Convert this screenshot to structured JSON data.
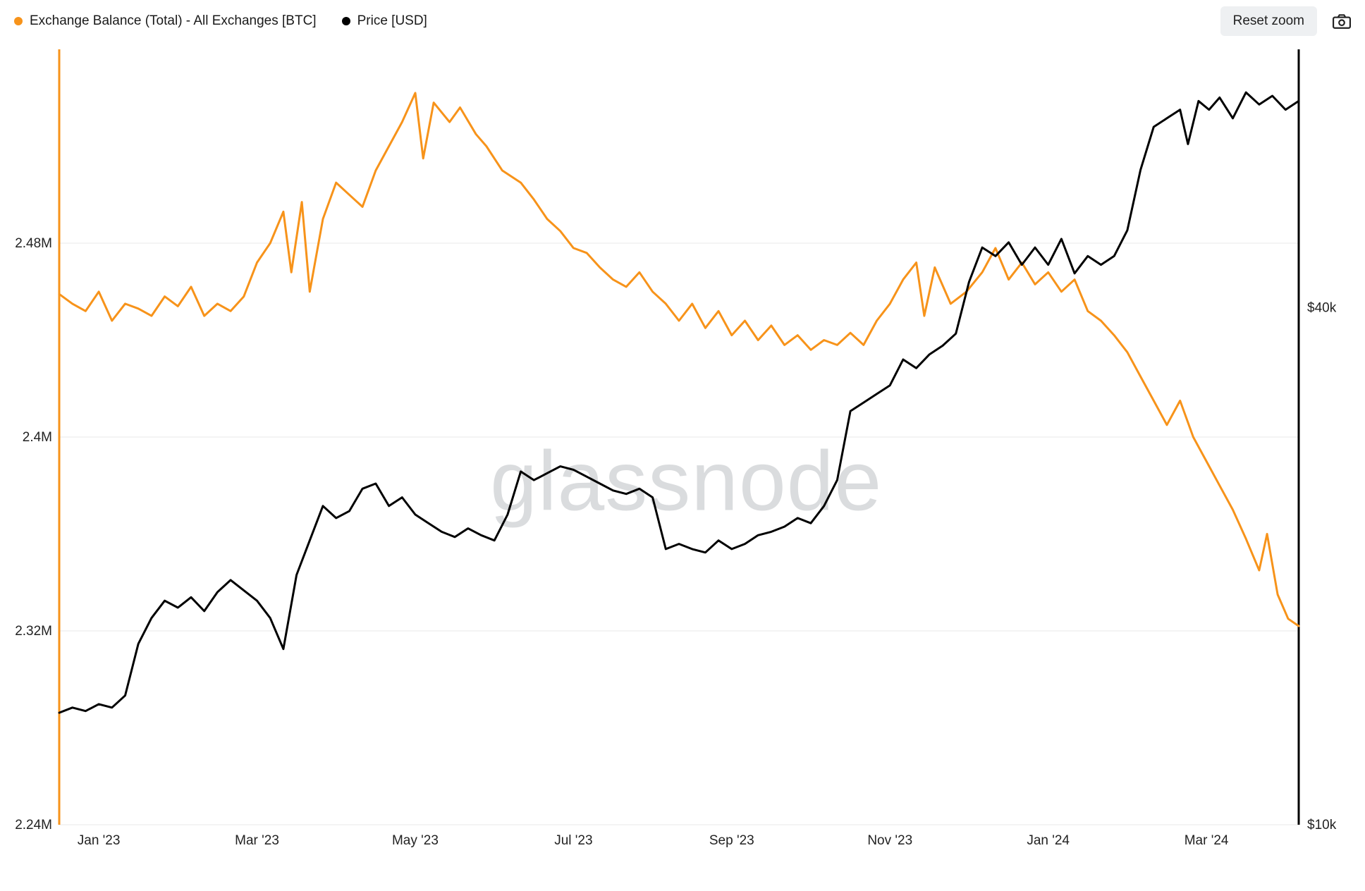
{
  "legend": {
    "series1": {
      "label": "Exchange Balance (Total) - All Exchanges [BTC]",
      "color": "#f7931a"
    },
    "series2": {
      "label": "Price [USD]",
      "color": "#000000"
    }
  },
  "controls": {
    "reset": "Reset zoom"
  },
  "watermark": "glassnode",
  "chart": {
    "type": "line-dual-axis",
    "background_color": "#ffffff",
    "grid_color": "#e8e8e8",
    "axis_font_size": 19,
    "line_width": 3,
    "x": {
      "min": 0,
      "max": 470,
      "ticks": [
        {
          "v": 15,
          "label": "Jan '23"
        },
        {
          "v": 75,
          "label": "Mar '23"
        },
        {
          "v": 135,
          "label": "May '23"
        },
        {
          "v": 195,
          "label": "Jul '23"
        },
        {
          "v": 255,
          "label": "Sep '23"
        },
        {
          "v": 315,
          "label": "Nov '23"
        },
        {
          "v": 375,
          "label": "Jan '24"
        },
        {
          "v": 435,
          "label": "Mar '24"
        }
      ]
    },
    "yLeft": {
      "min": 2.24,
      "max": 2.56,
      "ticks": [
        {
          "v": 2.24,
          "label": "2.24M"
        },
        {
          "v": 2.32,
          "label": "2.32M"
        },
        {
          "v": 2.4,
          "label": "2.4M"
        },
        {
          "v": 2.48,
          "label": "2.48M"
        }
      ],
      "color": "#f7931a"
    },
    "yRight": {
      "min": 10,
      "max": 55,
      "ticks": [
        {
          "v": 10,
          "label": "$10k"
        },
        {
          "v": 40,
          "label": "$40k"
        }
      ],
      "color": "#000000"
    },
    "series_balance": {
      "color": "#f7931a",
      "points": [
        [
          0,
          2.459
        ],
        [
          5,
          2.455
        ],
        [
          10,
          2.452
        ],
        [
          15,
          2.46
        ],
        [
          20,
          2.448
        ],
        [
          25,
          2.455
        ],
        [
          30,
          2.453
        ],
        [
          35,
          2.45
        ],
        [
          40,
          2.458
        ],
        [
          45,
          2.454
        ],
        [
          50,
          2.462
        ],
        [
          55,
          2.45
        ],
        [
          60,
          2.455
        ],
        [
          65,
          2.452
        ],
        [
          70,
          2.458
        ],
        [
          75,
          2.472
        ],
        [
          80,
          2.48
        ],
        [
          85,
          2.493
        ],
        [
          88,
          2.468
        ],
        [
          92,
          2.497
        ],
        [
          95,
          2.46
        ],
        [
          100,
          2.49
        ],
        [
          105,
          2.505
        ],
        [
          110,
          2.5
        ],
        [
          115,
          2.495
        ],
        [
          120,
          2.51
        ],
        [
          125,
          2.52
        ],
        [
          130,
          2.53
        ],
        [
          135,
          2.542
        ],
        [
          138,
          2.515
        ],
        [
          142,
          2.538
        ],
        [
          148,
          2.53
        ],
        [
          152,
          2.536
        ],
        [
          158,
          2.525
        ],
        [
          162,
          2.52
        ],
        [
          168,
          2.51
        ],
        [
          175,
          2.505
        ],
        [
          180,
          2.498
        ],
        [
          185,
          2.49
        ],
        [
          190,
          2.485
        ],
        [
          195,
          2.478
        ],
        [
          200,
          2.476
        ],
        [
          205,
          2.47
        ],
        [
          210,
          2.465
        ],
        [
          215,
          2.462
        ],
        [
          220,
          2.468
        ],
        [
          225,
          2.46
        ],
        [
          230,
          2.455
        ],
        [
          235,
          2.448
        ],
        [
          240,
          2.455
        ],
        [
          245,
          2.445
        ],
        [
          250,
          2.452
        ],
        [
          255,
          2.442
        ],
        [
          260,
          2.448
        ],
        [
          265,
          2.44
        ],
        [
          270,
          2.446
        ],
        [
          275,
          2.438
        ],
        [
          280,
          2.442
        ],
        [
          285,
          2.436
        ],
        [
          290,
          2.44
        ],
        [
          295,
          2.438
        ],
        [
          300,
          2.443
        ],
        [
          305,
          2.438
        ],
        [
          310,
          2.448
        ],
        [
          315,
          2.455
        ],
        [
          320,
          2.465
        ],
        [
          325,
          2.472
        ],
        [
          328,
          2.45
        ],
        [
          332,
          2.47
        ],
        [
          338,
          2.455
        ],
        [
          344,
          2.46
        ],
        [
          350,
          2.468
        ],
        [
          355,
          2.478
        ],
        [
          360,
          2.465
        ],
        [
          365,
          2.472
        ],
        [
          370,
          2.463
        ],
        [
          375,
          2.468
        ],
        [
          380,
          2.46
        ],
        [
          385,
          2.465
        ],
        [
          390,
          2.452
        ],
        [
          395,
          2.448
        ],
        [
          400,
          2.442
        ],
        [
          405,
          2.435
        ],
        [
          410,
          2.425
        ],
        [
          415,
          2.415
        ],
        [
          420,
          2.405
        ],
        [
          425,
          2.415
        ],
        [
          430,
          2.4
        ],
        [
          435,
          2.39
        ],
        [
          440,
          2.38
        ],
        [
          445,
          2.37
        ],
        [
          450,
          2.358
        ],
        [
          455,
          2.345
        ],
        [
          458,
          2.36
        ],
        [
          462,
          2.335
        ],
        [
          466,
          2.325
        ],
        [
          470,
          2.322
        ]
      ]
    },
    "series_price": {
      "color": "#000000",
      "points": [
        [
          0,
          16.5
        ],
        [
          5,
          16.8
        ],
        [
          10,
          16.6
        ],
        [
          15,
          17.0
        ],
        [
          20,
          16.8
        ],
        [
          25,
          17.5
        ],
        [
          30,
          20.5
        ],
        [
          35,
          22.0
        ],
        [
          40,
          23.0
        ],
        [
          45,
          22.6
        ],
        [
          50,
          23.2
        ],
        [
          55,
          22.4
        ],
        [
          60,
          23.5
        ],
        [
          65,
          24.2
        ],
        [
          70,
          23.6
        ],
        [
          75,
          23.0
        ],
        [
          80,
          22.0
        ],
        [
          85,
          20.2
        ],
        [
          90,
          24.5
        ],
        [
          95,
          26.5
        ],
        [
          100,
          28.5
        ],
        [
          105,
          27.8
        ],
        [
          110,
          28.2
        ],
        [
          115,
          29.5
        ],
        [
          120,
          29.8
        ],
        [
          125,
          28.5
        ],
        [
          130,
          29.0
        ],
        [
          135,
          28.0
        ],
        [
          140,
          27.5
        ],
        [
          145,
          27.0
        ],
        [
          150,
          26.7
        ],
        [
          155,
          27.2
        ],
        [
          160,
          26.8
        ],
        [
          165,
          26.5
        ],
        [
          170,
          28.0
        ],
        [
          175,
          30.5
        ],
        [
          180,
          30.0
        ],
        [
          185,
          30.4
        ],
        [
          190,
          30.8
        ],
        [
          195,
          30.6
        ],
        [
          200,
          30.2
        ],
        [
          205,
          29.8
        ],
        [
          210,
          29.4
        ],
        [
          215,
          29.2
        ],
        [
          220,
          29.5
        ],
        [
          225,
          29.0
        ],
        [
          230,
          26.0
        ],
        [
          235,
          26.3
        ],
        [
          240,
          26.0
        ],
        [
          245,
          25.8
        ],
        [
          250,
          26.5
        ],
        [
          255,
          26.0
        ],
        [
          260,
          26.3
        ],
        [
          265,
          26.8
        ],
        [
          270,
          27.0
        ],
        [
          275,
          27.3
        ],
        [
          280,
          27.8
        ],
        [
          285,
          27.5
        ],
        [
          290,
          28.5
        ],
        [
          295,
          30.0
        ],
        [
          300,
          34.0
        ],
        [
          305,
          34.5
        ],
        [
          310,
          35.0
        ],
        [
          315,
          35.5
        ],
        [
          320,
          37.0
        ],
        [
          325,
          36.5
        ],
        [
          330,
          37.3
        ],
        [
          335,
          37.8
        ],
        [
          340,
          38.5
        ],
        [
          345,
          41.5
        ],
        [
          350,
          43.5
        ],
        [
          355,
          43.0
        ],
        [
          360,
          43.8
        ],
        [
          365,
          42.5
        ],
        [
          370,
          43.5
        ],
        [
          375,
          42.5
        ],
        [
          380,
          44.0
        ],
        [
          385,
          42.0
        ],
        [
          390,
          43.0
        ],
        [
          395,
          42.5
        ],
        [
          400,
          43.0
        ],
        [
          405,
          44.5
        ],
        [
          410,
          48.0
        ],
        [
          415,
          50.5
        ],
        [
          420,
          51.0
        ],
        [
          425,
          51.5
        ],
        [
          428,
          49.5
        ],
        [
          432,
          52.0
        ],
        [
          436,
          51.5
        ],
        [
          440,
          52.2
        ],
        [
          445,
          51.0
        ],
        [
          450,
          52.5
        ],
        [
          455,
          51.8
        ],
        [
          460,
          52.3
        ],
        [
          465,
          51.5
        ],
        [
          470,
          52.0
        ]
      ]
    }
  }
}
